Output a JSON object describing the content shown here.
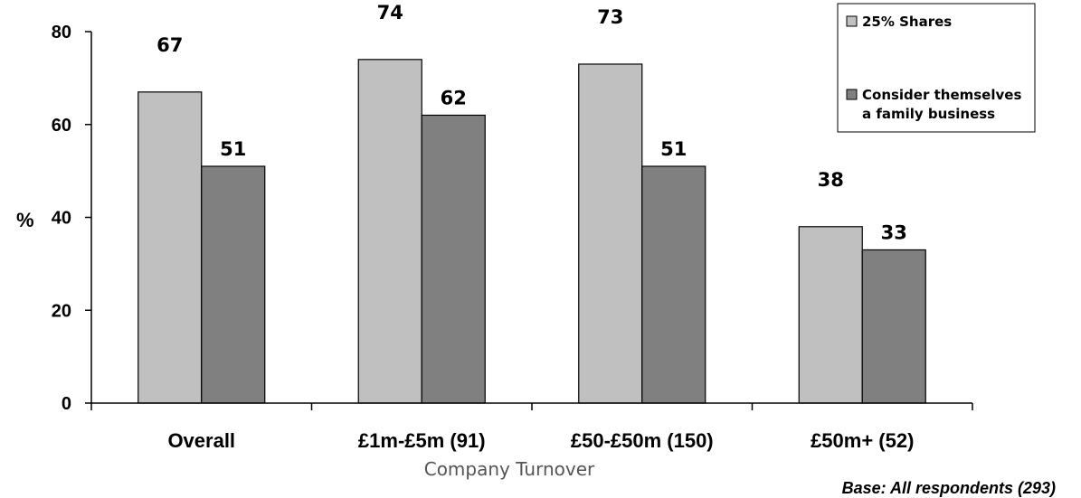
{
  "chart_data": {
    "type": "bar",
    "categories": [
      "Overall",
      "£1m-£5m (91)",
      "£50-£50m (150)",
      "£50m+ (52)"
    ],
    "series": [
      {
        "name": "25% Shares",
        "values": [
          67,
          74,
          73,
          38
        ],
        "color": "#c0c0c0"
      },
      {
        "name": "Consider themselves a family business",
        "name_lines": [
          "Consider themselves",
          "a family business"
        ],
        "values": [
          51,
          62,
          51,
          33
        ],
        "color": "#808080"
      }
    ],
    "data_labels": [
      [
        "67",
        "74",
        "73",
        "38"
      ],
      [
        "51",
        "62",
        "51",
        "33"
      ]
    ],
    "xlabel": "Company Turnover",
    "ylabel": "%",
    "ylim": [
      0,
      80
    ],
    "yticks": [
      0,
      20,
      40,
      60,
      80
    ],
    "ytick_labels": [
      "0",
      "20",
      "40",
      "60",
      "80"
    ],
    "grid": false,
    "legend_position": "top-right",
    "footnote": "Base: All respondents (293)"
  }
}
